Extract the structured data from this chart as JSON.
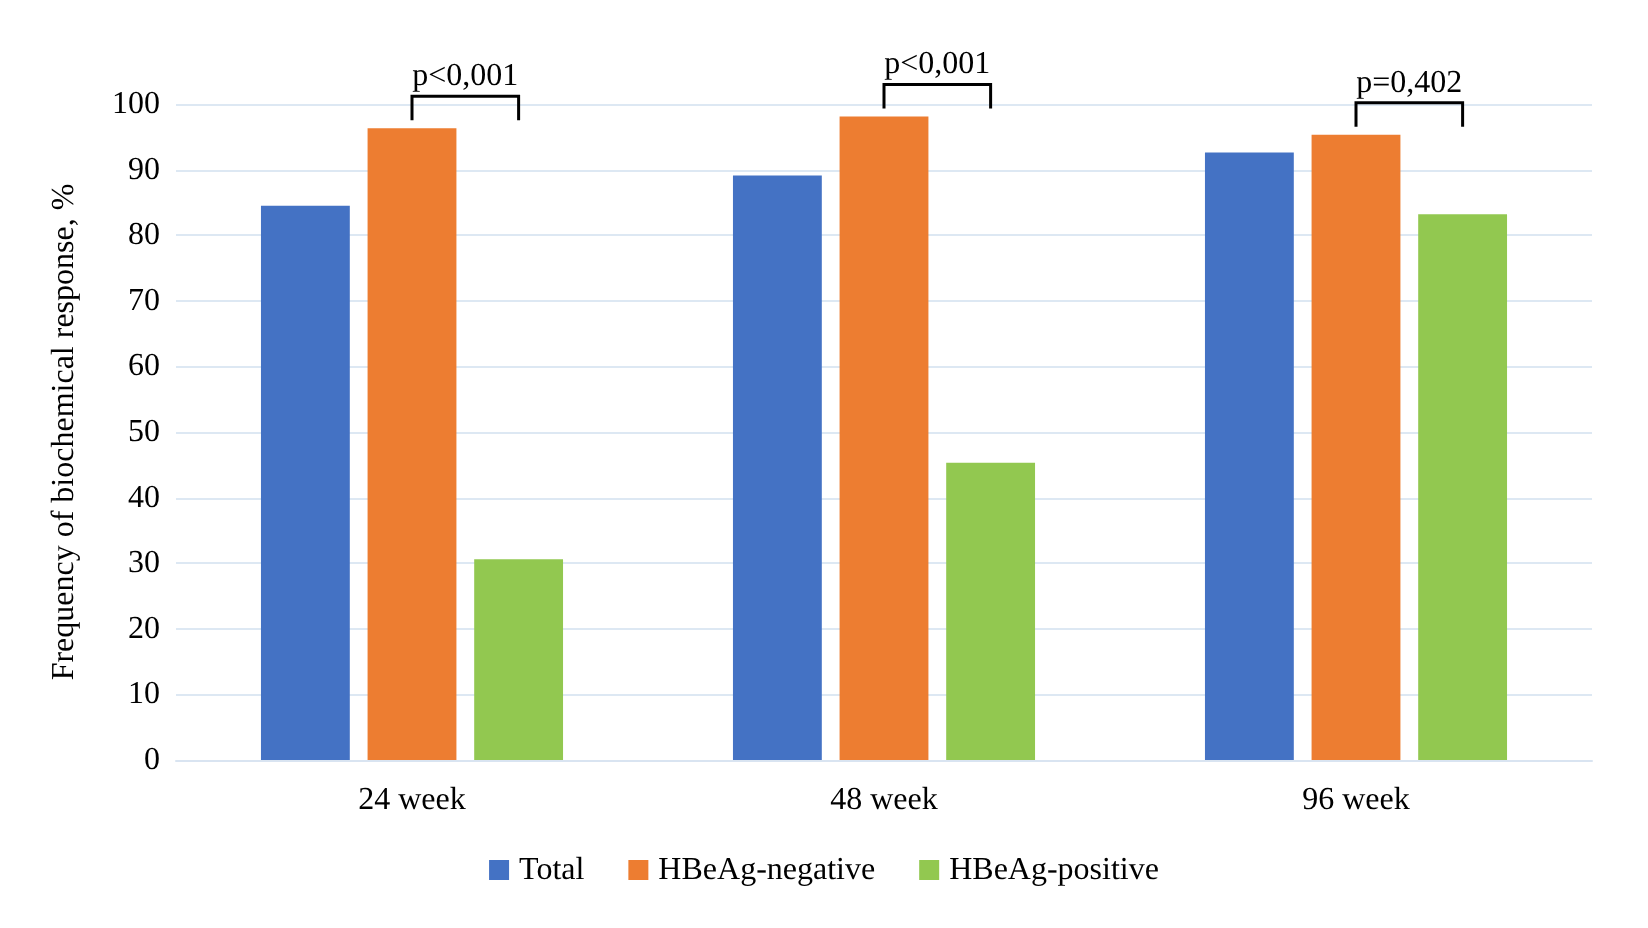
{
  "chart_data": {
    "type": "bar",
    "ylabel": "Frequency of biochemical response, %",
    "categories": [
      "24 week",
      "48 week",
      "96 week"
    ],
    "series": [
      {
        "name": "Total",
        "color": "#4472c4",
        "values": [
          84.5,
          89.1,
          92.6
        ]
      },
      {
        "name": "HBeAg-negative",
        "color": "#ed7d31",
        "values": [
          96.3,
          98.1,
          95.3
        ]
      },
      {
        "name": "HBeAg-positive",
        "color": "#92c850",
        "values": [
          30.6,
          45.3,
          83.2
        ]
      }
    ],
    "ylim": [
      0,
      100
    ],
    "yticks": [
      0,
      10,
      20,
      30,
      40,
      50,
      60,
      70,
      80,
      90,
      100
    ],
    "grid": "y",
    "legend": "bottom",
    "annotations": [
      "p<0,001",
      "p<0,001",
      "p=0,402"
    ]
  }
}
